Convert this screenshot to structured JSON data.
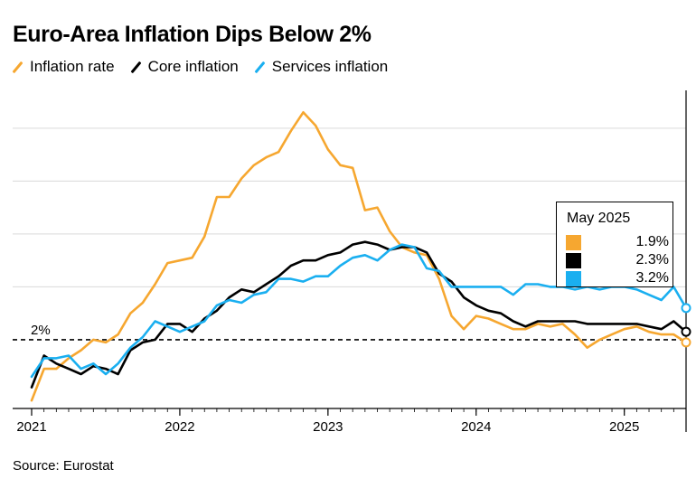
{
  "title": "Euro-Area Inflation Dips Below 2%",
  "legend": [
    {
      "label": "Inflation rate",
      "color": "#f6a730"
    },
    {
      "label": "Core inflation",
      "color": "#000000"
    },
    {
      "label": "Services inflation",
      "color": "#1aaff0"
    }
  ],
  "source": "Source: Eurostat",
  "tooltip": {
    "header": "May 2025",
    "rows": [
      {
        "value": "1.9%",
        "color": "#f6a730"
      },
      {
        "value": "2.3%",
        "color": "#000000"
      },
      {
        "value": "3.2%",
        "color": "#1aaff0"
      }
    ]
  },
  "chart_data": {
    "type": "line",
    "title": "Euro-Area Inflation Dips Below 2%",
    "xlabel": "",
    "ylabel": "",
    "x_start": "2021-01",
    "x_end": "2025-06",
    "x_ticks": [
      {
        "label": "2021",
        "date": "2021-01"
      },
      {
        "label": "2022",
        "date": "2022-01"
      },
      {
        "label": "2023",
        "date": "2023-01"
      },
      {
        "label": "2024",
        "date": "2024-01"
      },
      {
        "label": "2025",
        "date": "2025-01"
      }
    ],
    "ylim": [
      -0.6,
      11.5
    ],
    "y_gridlines": [
      4,
      6,
      8,
      10
    ],
    "reference_line": {
      "value": 2,
      "label": "2%"
    },
    "series": [
      {
        "name": "Inflation rate",
        "color": "#f6a730",
        "values": [
          -0.3,
          0.9,
          0.9,
          1.3,
          1.6,
          2.0,
          1.9,
          2.2,
          3.0,
          3.4,
          4.1,
          4.9,
          5.0,
          5.1,
          5.9,
          7.4,
          7.4,
          8.1,
          8.6,
          8.9,
          9.1,
          9.9,
          10.6,
          10.1,
          9.2,
          8.6,
          8.5,
          6.9,
          7.0,
          6.1,
          5.5,
          5.3,
          5.2,
          4.3,
          2.9,
          2.4,
          2.9,
          2.8,
          2.6,
          2.4,
          2.4,
          2.6,
          2.5,
          2.6,
          2.2,
          1.7,
          2.0,
          2.2,
          2.4,
          2.5,
          2.3,
          2.2,
          2.2,
          1.9
        ]
      },
      {
        "name": "Core inflation",
        "color": "#000000",
        "values": [
          0.2,
          1.4,
          1.1,
          0.9,
          0.7,
          1.0,
          0.9,
          0.7,
          1.6,
          1.9,
          2.0,
          2.6,
          2.6,
          2.3,
          2.8,
          3.1,
          3.6,
          3.9,
          3.8,
          4.1,
          4.4,
          4.8,
          5.0,
          5.0,
          5.2,
          5.3,
          5.6,
          5.7,
          5.6,
          5.4,
          5.5,
          5.5,
          5.3,
          4.5,
          4.2,
          3.6,
          3.3,
          3.1,
          3.0,
          2.7,
          2.5,
          2.7,
          2.7,
          2.7,
          2.7,
          2.6,
          2.6,
          2.6,
          2.6,
          2.6,
          2.5,
          2.4,
          2.7,
          2.3
        ]
      },
      {
        "name": "Services inflation",
        "color": "#1aaff0",
        "values": [
          0.6,
          1.3,
          1.3,
          1.4,
          0.9,
          1.1,
          0.7,
          1.1,
          1.7,
          2.1,
          2.7,
          2.5,
          2.3,
          2.5,
          2.7,
          3.3,
          3.5,
          3.4,
          3.7,
          3.8,
          4.3,
          4.3,
          4.2,
          4.4,
          4.4,
          4.8,
          5.1,
          5.2,
          5.0,
          5.4,
          5.6,
          5.5,
          4.7,
          4.6,
          4.0,
          4.0,
          4.0,
          4.0,
          4.0,
          3.7,
          4.1,
          4.1,
          4.0,
          4.0,
          3.9,
          4.0,
          3.9,
          4.0,
          4.0,
          3.9,
          3.7,
          3.5,
          4.0,
          3.2
        ]
      }
    ]
  }
}
